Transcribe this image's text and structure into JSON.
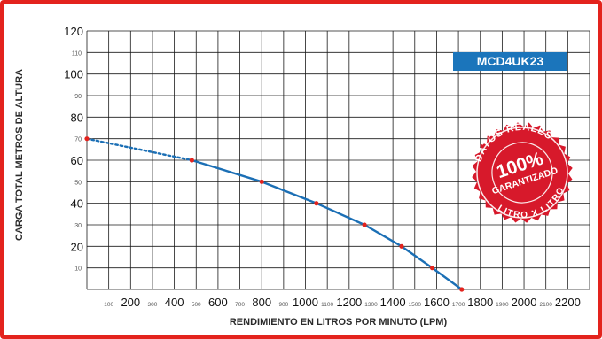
{
  "chart_data": {
    "type": "line",
    "title": "",
    "xlabel": "RENDIMIENTO EN LITROS POR MINUTO (LPM)",
    "ylabel": "CARGA TOTAL METROS DE ALTURA",
    "xlim": [
      0,
      2300
    ],
    "ylim": [
      0,
      120
    ],
    "grid": true,
    "model_label": "MCD4UK23",
    "x_ticks_major": [
      "200",
      "400",
      "600",
      "800",
      "1000",
      "1200",
      "1400",
      "1600",
      "1800",
      "2000",
      "2200"
    ],
    "x_ticks_minor": [
      "100",
      "300",
      "500",
      "700",
      "900",
      "1100",
      "1300",
      "1500",
      "1700",
      "1900",
      "2100"
    ],
    "y_ticks_major": [
      "20",
      "40",
      "60",
      "80",
      "100",
      "120"
    ],
    "y_ticks_minor": [
      "10",
      "30",
      "50",
      "70",
      "90",
      "110"
    ],
    "series": [
      {
        "x": [
          0,
          480,
          800,
          1050,
          1270,
          1440,
          1580,
          1715
        ],
        "y": [
          70,
          60,
          50,
          40,
          30,
          20,
          10,
          0
        ],
        "color": "#1b6fb5",
        "point_color": "#e3231d",
        "dotted_until_index": 1
      }
    ]
  },
  "stamp": {
    "top_text": "DATOS REALES",
    "big_text": "100%",
    "mid_text": "GARANTIZADO",
    "bottom_text": "LITRO X LITRO",
    "color": "#d7192b"
  }
}
